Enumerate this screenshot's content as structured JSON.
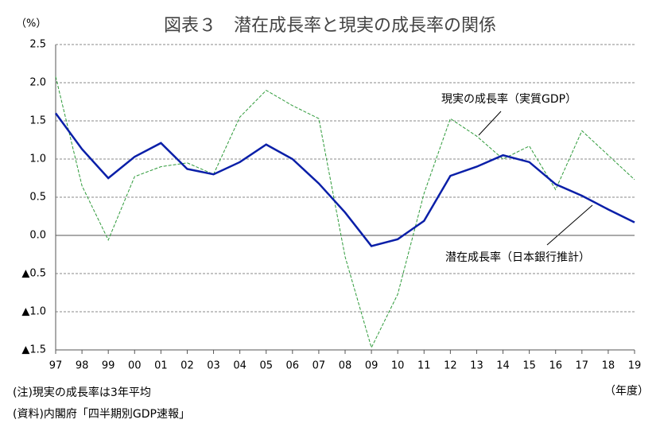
{
  "chart_data": {
    "type": "line",
    "title": "図表３　潜在成長率と現実の成長率の関係",
    "y_unit": "（%）",
    "x_unit": "（年度）",
    "notes": [
      "(注)現実の成長率は3年平均",
      "(資料)内閣府「四半期別GDP速報」"
    ],
    "categories": [
      "97",
      "98",
      "99",
      "00",
      "01",
      "02",
      "03",
      "04",
      "05",
      "06",
      "07",
      "08",
      "09",
      "10",
      "11",
      "12",
      "13",
      "14",
      "15",
      "16",
      "17",
      "18",
      "19"
    ],
    "series": [
      {
        "name": "潜在成長率（日本銀行推計）",
        "color": "#0a1fa8",
        "style": "solid",
        "values": [
          1.6,
          1.13,
          0.75,
          1.03,
          1.21,
          0.87,
          0.8,
          0.96,
          1.19,
          1.0,
          0.68,
          0.3,
          -0.14,
          -0.05,
          0.19,
          0.78,
          0.9,
          1.05,
          0.96,
          0.67,
          0.52,
          0.34,
          0.17
        ]
      },
      {
        "name": "現実の成長率（実質GDP）",
        "color": "#2e9a3a",
        "style": "dashed",
        "values": [
          2.08,
          0.65,
          -0.06,
          0.77,
          0.9,
          0.95,
          0.8,
          1.55,
          1.9,
          1.7,
          1.53,
          -0.28,
          -1.47,
          -0.77,
          0.55,
          1.53,
          1.3,
          1.0,
          1.17,
          0.6,
          1.37,
          1.05,
          0.73
        ]
      }
    ],
    "ylim": [
      -1.5,
      2.5
    ],
    "yticks": [
      2.5,
      {
        "value": 2.0,
        "label": "2.0"
      },
      1.5,
      {
        "value": 1.0,
        "label": "1.0"
      },
      0.5,
      {
        "value": 0.0,
        "label": "0.0"
      },
      {
        "value": -0.5,
        "label": "▲0.5"
      },
      {
        "value": -1.0,
        "label": "▲1.0"
      },
      {
        "value": -1.5,
        "label": "▲1.5"
      }
    ],
    "grid": true
  }
}
